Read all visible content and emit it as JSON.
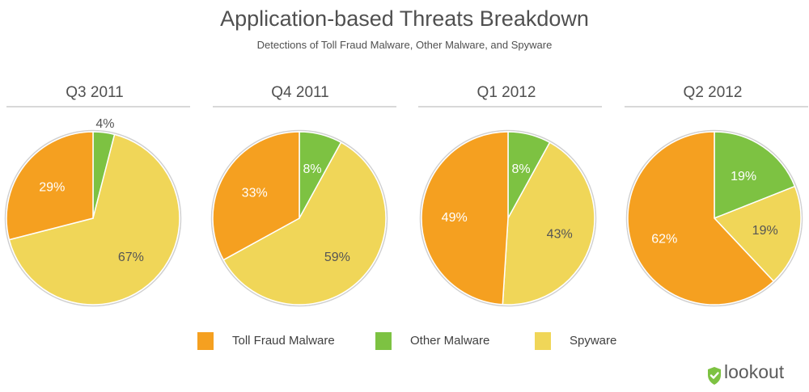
{
  "header": {
    "title": "Application-based Threats Breakdown",
    "subtitle": "Detections of Toll Fraud Malware, Other Malware, and Spyware"
  },
  "colors": {
    "toll_fraud": "#F5A020",
    "other_malware": "#7DC242",
    "spyware": "#F0D658",
    "outline": "#d0d0d0",
    "rule": "#d8d8d8"
  },
  "legend": [
    {
      "label": "Toll Fraud Malware",
      "color": "#F5A020"
    },
    {
      "label": "Other Malware",
      "color": "#7DC242"
    },
    {
      "label": "Spyware",
      "color": "#F0D658"
    }
  ],
  "brand": {
    "logo_text": "lookout",
    "logo_icon": "shield-check-icon"
  },
  "chart_data": {
    "type": "pie",
    "categories": [
      "Toll Fraud Malware",
      "Other Malware",
      "Spyware"
    ],
    "charts": [
      {
        "title": "Q3 2011",
        "values": [
          29,
          4,
          67
        ],
        "labels": [
          "29%",
          "4%",
          "67%"
        ]
      },
      {
        "title": "Q4 2011",
        "values": [
          33,
          8,
          59
        ],
        "labels": [
          "33%",
          "8%",
          "59%"
        ]
      },
      {
        "title": "Q1 2012",
        "values": [
          49,
          8,
          43
        ],
        "labels": [
          "49%",
          "8%",
          "43%"
        ]
      },
      {
        "title": "Q2 2012",
        "values": [
          62,
          19,
          19
        ],
        "labels": [
          "62%",
          "19%",
          "19%"
        ]
      }
    ]
  }
}
